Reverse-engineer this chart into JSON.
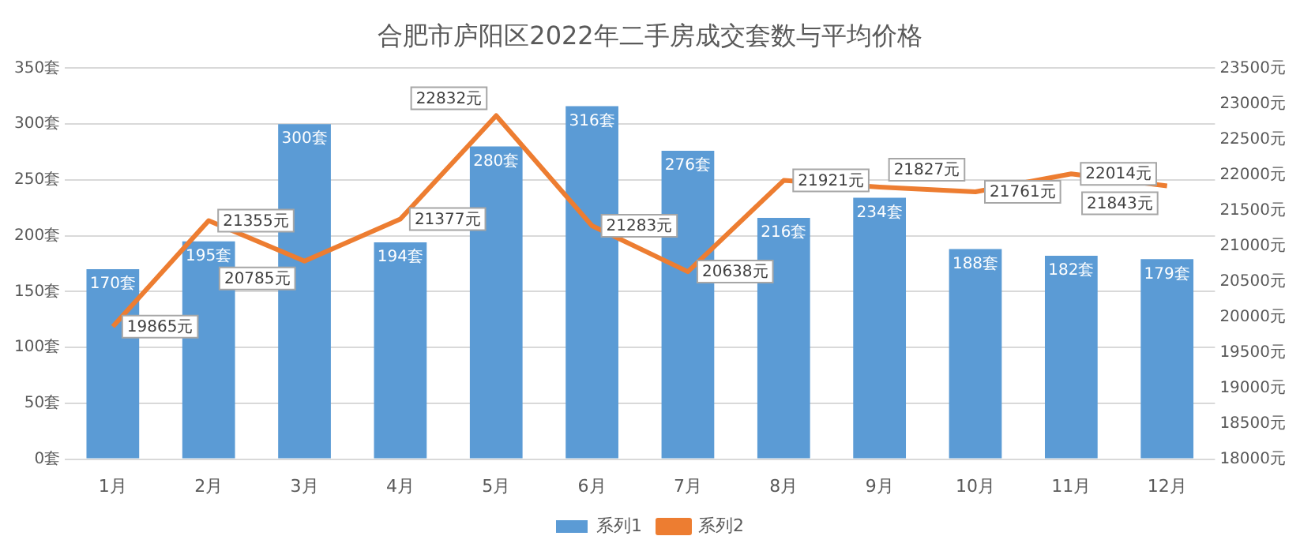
{
  "chart_data": {
    "type": "bar",
    "title": "合肥市庐阳区2022年二手房成交套数与平均价格",
    "categories": [
      "1月",
      "2月",
      "3月",
      "4月",
      "5月",
      "6月",
      "7月",
      "8月",
      "9月",
      "10月",
      "11月",
      "12月"
    ],
    "series": [
      {
        "name": "系列1",
        "color": "#5b9bd5",
        "values": [
          170,
          195,
          300,
          194,
          280,
          316,
          276,
          216,
          234,
          188,
          182,
          179
        ],
        "value_labels": [
          "170套",
          "195套",
          "300套",
          "194套",
          "280套",
          "316套",
          "276套",
          "216套",
          "234套",
          "188套",
          "182套",
          "179套"
        ]
      },
      {
        "name": "系列2",
        "type": "line",
        "axis": "y2",
        "color": "#ed7d31",
        "marker": "none",
        "values": [
          19865,
          21355,
          20785,
          21377,
          22832,
          21283,
          20638,
          21921,
          21827,
          21761,
          22014,
          21843
        ],
        "value_labels": [
          "19865元",
          "21355元",
          "20785元",
          "21377元",
          "22832元",
          "21283元",
          "20638元",
          "21921元",
          "21827元",
          "21761元",
          "22014元",
          "21843元"
        ]
      }
    ],
    "ylim": [
      0,
      350
    ],
    "yticks": [
      {
        "value": 0,
        "label": "0套"
      },
      {
        "value": 50,
        "label": "50套"
      },
      {
        "value": 100,
        "label": "100套"
      },
      {
        "value": 150,
        "label": "150套"
      },
      {
        "value": 200,
        "label": "200套"
      },
      {
        "value": 250,
        "label": "250套"
      },
      {
        "value": 300,
        "label": "300套"
      },
      {
        "value": 350,
        "label": "350套"
      }
    ],
    "y2lim": [
      18000,
      23500
    ],
    "y2ticks": [
      {
        "value": 18000,
        "label": "18000元"
      },
      {
        "value": 18500,
        "label": "18500元"
      },
      {
        "value": 19000,
        "label": "19000元"
      },
      {
        "value": 19500,
        "label": "19500元"
      },
      {
        "value": 20000,
        "label": "20000元"
      },
      {
        "value": 20500,
        "label": "20500元"
      },
      {
        "value": 21000,
        "label": "21000元"
      },
      {
        "value": 21500,
        "label": "21500元"
      },
      {
        "value": 22000,
        "label": "22000元"
      },
      {
        "value": 22500,
        "label": "22500元"
      },
      {
        "value": 23000,
        "label": "23000元"
      },
      {
        "value": 23500,
        "label": "23500元"
      }
    ],
    "grid": "y",
    "legend": "bottom"
  }
}
